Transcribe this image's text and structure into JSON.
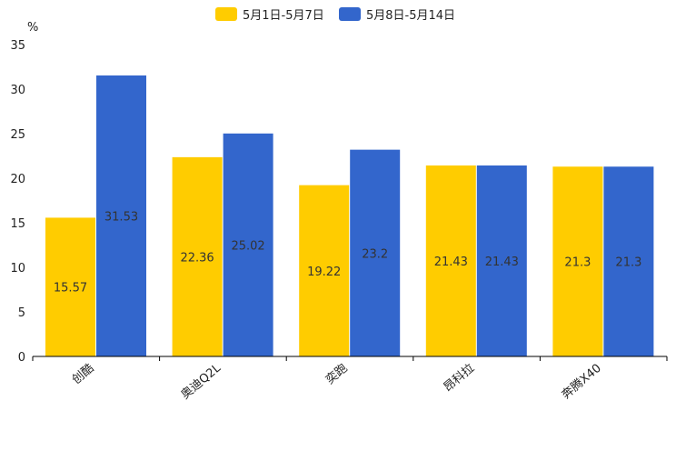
{
  "chart_data": {
    "type": "bar",
    "title": "",
    "xlabel": "",
    "ylabel": "%",
    "ylim": [
      0,
      35
    ],
    "yticks": [
      0,
      5,
      10,
      15,
      20,
      25,
      30,
      35
    ],
    "grid": false,
    "legend_position": "top-center",
    "categories": [
      "创酷",
      "奥迪Q2L",
      "奕跑",
      "昂科拉",
      "奔腾X40"
    ],
    "series": [
      {
        "name": "5月1日-5月7日",
        "color": "#FFCC00",
        "values": [
          15.57,
          22.36,
          19.22,
          21.43,
          21.3
        ]
      },
      {
        "name": "5月8日-5月14日",
        "color": "#3366CC",
        "values": [
          31.53,
          25.02,
          23.2,
          21.43,
          21.3
        ]
      }
    ]
  }
}
